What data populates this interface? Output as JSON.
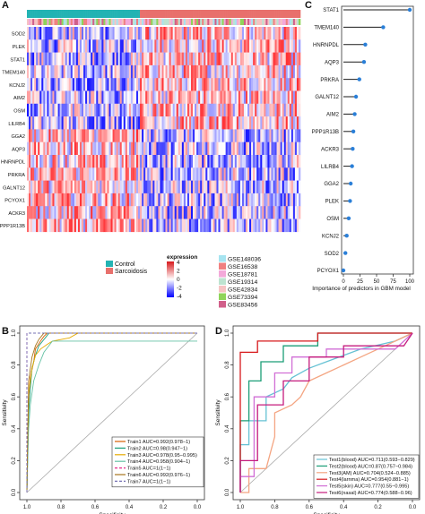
{
  "panels": {
    "a": "A",
    "b": "B",
    "c": "C",
    "d": "D"
  },
  "heatmap": {
    "genes": [
      "SOD2",
      "PLEK",
      "STAT1",
      "TMEM140",
      "KCNJ2",
      "AIM2",
      "OSM",
      "LILRB4",
      "GGA2",
      "AQP3",
      "HNRNPDL",
      "PRKRA",
      "GALNT12",
      "PCYOX1",
      "ACKR3",
      "PPP1R13B"
    ],
    "group_legend": [
      {
        "label": "Control",
        "color": "#23b3b3"
      },
      {
        "label": "Sarcoidosis",
        "color": "#e8706c"
      }
    ],
    "expression_legend": {
      "title": "expression",
      "ticks": [
        "4",
        "2",
        "0",
        "-2",
        "-4"
      ],
      "colors": [
        "#d7191c",
        "#ffffff",
        "#0000ff"
      ]
    },
    "dataset_legend": [
      {
        "label": "GSE148036",
        "color": "#a6e4f0"
      },
      {
        "label": "GSE16538",
        "color": "#f08080"
      },
      {
        "label": "GSE18781",
        "color": "#f3a9d9"
      },
      {
        "label": "GSE19314",
        "color": "#bde3d0"
      },
      {
        "label": "GSE42834",
        "color": "#f6c3c3"
      },
      {
        "label": "GSE73394",
        "color": "#8fd45a"
      },
      {
        "label": "GSE83456",
        "color": "#d15f8a"
      }
    ]
  },
  "chart_data": [
    {
      "type": "bar",
      "panel": "C",
      "categories": [
        "STAT1",
        "TMEM140",
        "HNRNPDL",
        "AQP3",
        "PRKRA",
        "GALNT12",
        "AIM2",
        "PPP1R13B",
        "ACKR3",
        "LILRB4",
        "GGA2",
        "PLEK",
        "OSM",
        "KCNJ2",
        "SOD2",
        "PCYOX1"
      ],
      "values": [
        100,
        60,
        33,
        31,
        24,
        19,
        17,
        15,
        14,
        13,
        11,
        10,
        8,
        5,
        3,
        0
      ],
      "xlabel": "Importance of predictors in GBM model",
      "x_ticks": [
        "0",
        "25",
        "50",
        "75",
        "100"
      ],
      "xlim": [
        0,
        100
      ]
    },
    {
      "type": "line",
      "panel": "B",
      "xlabel": "Specificity",
      "ylabel": "Sensitivity",
      "x_ticks": [
        "1.0",
        "0.8",
        "0.6",
        "0.4",
        "0.2",
        "0.0"
      ],
      "y_ticks": [
        "0.0",
        "0.2",
        "0.4",
        "0.6",
        "0.8",
        "1.0"
      ],
      "xlim": [
        1.0,
        0.0
      ],
      "ylim": [
        0.0,
        1.0
      ],
      "series": [
        {
          "name": "Train1 AUC=0.992(0.978−1)",
          "color": "#d95f02",
          "dash": false,
          "x": [
            1.0,
            0.99,
            0.98,
            0.96,
            0.95,
            0.92,
            0.9,
            0.88,
            0.0
          ],
          "y": [
            0.0,
            0.6,
            0.72,
            0.82,
            0.9,
            0.95,
            0.98,
            1.0,
            1.0
          ]
        },
        {
          "name": "Train2 AUC=0.98(0.947−1)",
          "color": "#1b9e77",
          "dash": false,
          "x": [
            1.0,
            0.99,
            0.98,
            0.97,
            0.95,
            0.93,
            0.9,
            0.87,
            0.0
          ],
          "y": [
            0.0,
            0.5,
            0.65,
            0.78,
            0.86,
            0.92,
            0.96,
            1.0,
            1.0
          ]
        },
        {
          "name": "Train3 AUC=0.978(0.95−0.995)",
          "color": "#e6ab02",
          "dash": false,
          "x": [
            1.0,
            0.99,
            0.97,
            0.95,
            0.92,
            0.88,
            0.85,
            0.75,
            0.7,
            0.0
          ],
          "y": [
            0.0,
            0.62,
            0.78,
            0.86,
            0.9,
            0.93,
            0.95,
            0.97,
            1.0,
            1.0
          ]
        },
        {
          "name": "Train4 AUC=0.958(0.904−1)",
          "color": "#66c2a5",
          "dash": false,
          "x": [
            1.0,
            0.99,
            0.98,
            0.96,
            0.93,
            0.9,
            0.85,
            0.0
          ],
          "y": [
            0.0,
            0.4,
            0.55,
            0.7,
            0.8,
            0.88,
            0.95,
            0.95
          ]
        },
        {
          "name": "Train5 AUC=1(1−1)",
          "color": "#e7298a",
          "dash": true,
          "x": [
            1.0,
            1.0,
            0.0
          ],
          "y": [
            0.0,
            1.0,
            1.0
          ]
        },
        {
          "name": "Train6 AUC=0.992(0.976−1)",
          "color": "#a6761d",
          "dash": false,
          "x": [
            1.0,
            0.99,
            0.97,
            0.95,
            0.93,
            0.9,
            0.0
          ],
          "y": [
            0.0,
            0.7,
            0.85,
            0.92,
            0.96,
            1.0,
            1.0
          ]
        },
        {
          "name": "Train7 AUC=1(1−1)",
          "color": "#7570b3",
          "dash": true,
          "x": [
            1.0,
            1.0,
            0.0
          ],
          "y": [
            0.0,
            1.0,
            1.0
          ]
        }
      ]
    },
    {
      "type": "line",
      "panel": "D",
      "xlabel": "Specificity",
      "ylabel": "Sensitivity",
      "x_ticks": [
        "1.0",
        "0.8",
        "0.6",
        "0.4",
        "0.2",
        "0.0"
      ],
      "y_ticks": [
        "0.0",
        "0.2",
        "0.4",
        "0.6",
        "0.8",
        "1.0"
      ],
      "xlim": [
        1.0,
        0.0
      ],
      "ylim": [
        0.0,
        1.0
      ],
      "series": [
        {
          "name": "Test1(blood) AUC=0.711(0.593−0.829)",
          "color": "#66c2d4",
          "dash": false,
          "x": [
            1.0,
            1.0,
            0.95,
            0.95,
            0.85,
            0.85,
            0.75,
            0.7,
            0.6,
            0.5,
            0.4,
            0.3,
            0.1,
            0.0
          ],
          "y": [
            0.0,
            0.3,
            0.3,
            0.45,
            0.45,
            0.6,
            0.65,
            0.72,
            0.78,
            0.82,
            0.86,
            0.9,
            0.95,
            1.0
          ]
        },
        {
          "name": "Test2(blood) AUC=0.87(0.757−0.984)",
          "color": "#1b9e77",
          "dash": false,
          "x": [
            1.0,
            1.0,
            0.95,
            0.95,
            0.88,
            0.88,
            0.75,
            0.75,
            0.55,
            0.55,
            0.0
          ],
          "y": [
            0.0,
            0.45,
            0.45,
            0.7,
            0.7,
            0.82,
            0.82,
            0.92,
            0.92,
            1.0,
            1.0
          ]
        },
        {
          "name": "Test3(AM) AUC=0.704(0.524−0.885)",
          "color": "#f4a582",
          "dash": false,
          "x": [
            1.0,
            0.95,
            0.95,
            0.85,
            0.8,
            0.8,
            0.7,
            0.65,
            0.6,
            0.5,
            0.4,
            0.3,
            0.2,
            0.1,
            0.0
          ],
          "y": [
            0.0,
            0.0,
            0.15,
            0.15,
            0.35,
            0.5,
            0.55,
            0.6,
            0.7,
            0.75,
            0.8,
            0.85,
            0.9,
            0.95,
            1.0
          ]
        },
        {
          "name": "Test4(larnma) AUC=0.954(0.881−1)",
          "color": "#d7191c",
          "dash": false,
          "x": [
            1.0,
            1.0,
            0.9,
            0.9,
            0.55,
            0.55,
            0.0
          ],
          "y": [
            0.0,
            0.88,
            0.88,
            0.95,
            0.95,
            1.0,
            1.0
          ]
        },
        {
          "name": "Test5(skin) AUC=0.777(0.55−0.995)",
          "color": "#d16fd6",
          "dash": false,
          "x": [
            1.0,
            1.0,
            0.92,
            0.92,
            0.8,
            0.8,
            0.7,
            0.7,
            0.5,
            0.5,
            0.1,
            0.0
          ],
          "y": [
            0.0,
            0.1,
            0.1,
            0.6,
            0.6,
            0.75,
            0.75,
            0.85,
            0.85,
            0.9,
            0.9,
            1.0
          ]
        },
        {
          "name": "Test6(nasal) AUC=0.774(0.588−0.96)",
          "color": "#c51b7d",
          "dash": false,
          "x": [
            1.0,
            1.0,
            0.9,
            0.9,
            0.75,
            0.75,
            0.6,
            0.6,
            0.4,
            0.4,
            0.05,
            0.0
          ],
          "y": [
            0.0,
            0.2,
            0.2,
            0.55,
            0.55,
            0.7,
            0.7,
            0.85,
            0.85,
            0.92,
            0.92,
            1.0
          ]
        }
      ]
    }
  ]
}
